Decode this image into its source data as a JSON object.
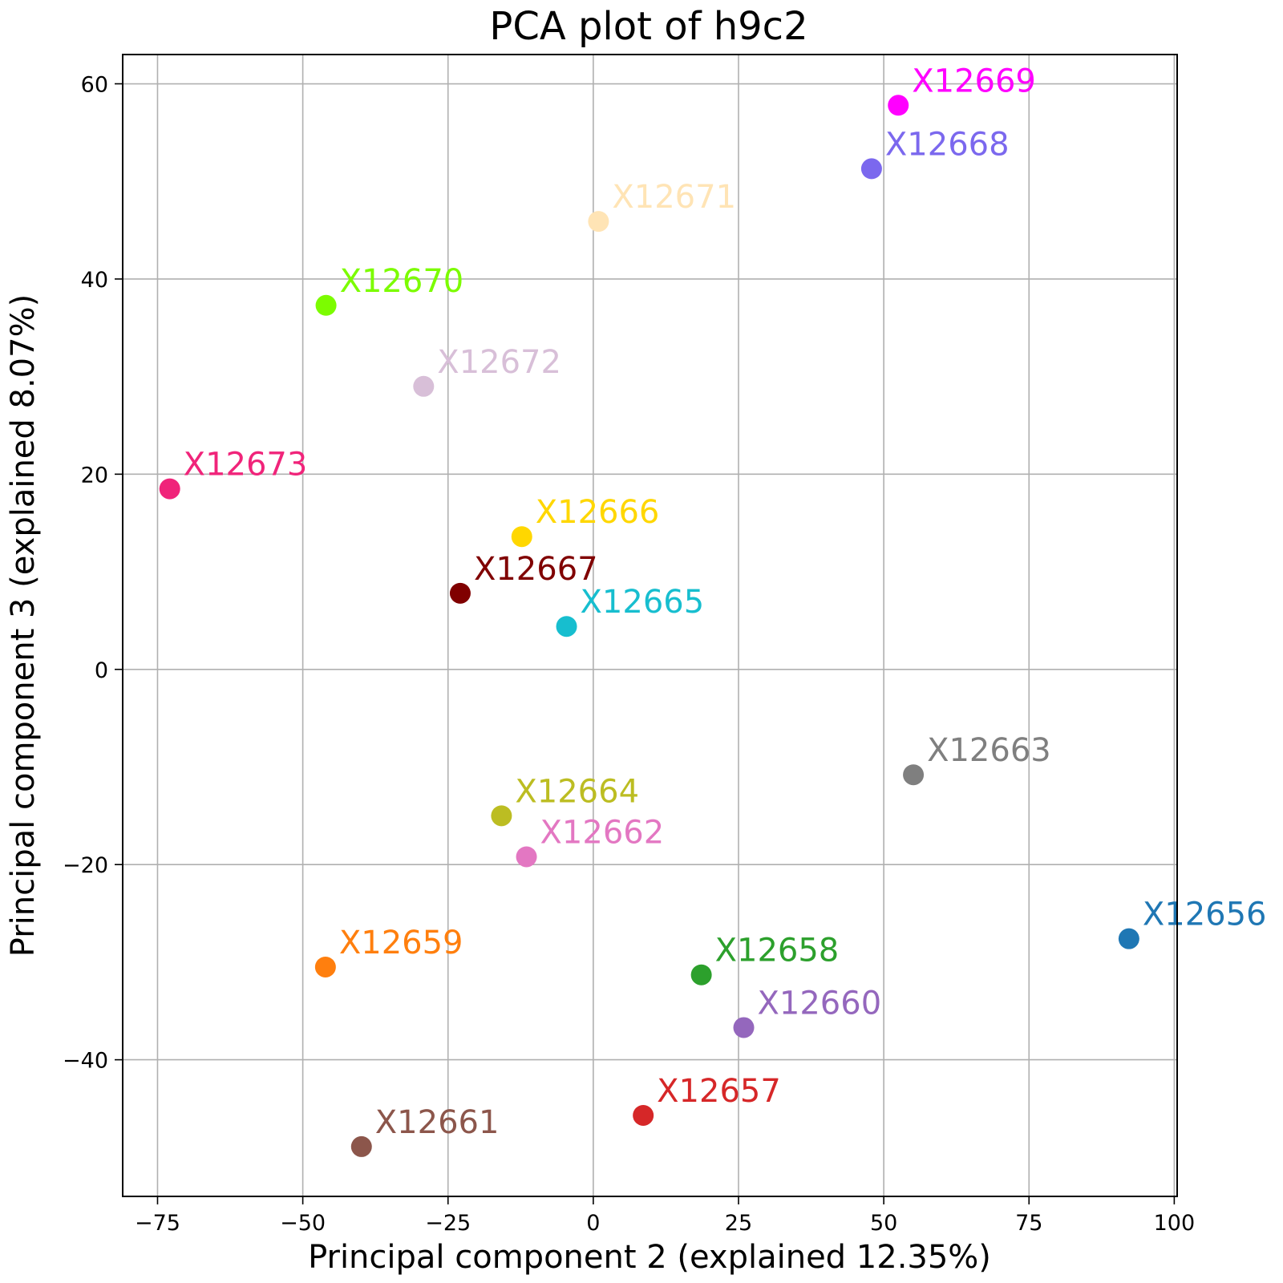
{
  "chart_data": {
    "type": "scatter",
    "title": "PCA plot of h9c2",
    "xlabel": "Principal component 2 (explained 12.35%)",
    "ylabel": "Principal component 3 (explained 8.07%)",
    "xlim": [
      -81,
      100.5
    ],
    "ylim": [
      -54,
      63
    ],
    "xticks": [
      -75,
      -50,
      -25,
      0,
      25,
      50,
      75,
      100
    ],
    "xtick_labels": [
      "−75",
      "−50",
      "−25",
      "0",
      "25",
      "50",
      "75",
      "100"
    ],
    "yticks": [
      -40,
      -20,
      0,
      20,
      40,
      60
    ],
    "ytick_labels": [
      "−40",
      "−20",
      "0",
      "20",
      "40",
      "60"
    ],
    "grid": true,
    "legend": "none",
    "points": [
      {
        "label": "X12656",
        "x": 92.2,
        "y": -27.6,
        "color": "#1f77b4"
      },
      {
        "label": "X12657",
        "x": 8.6,
        "y": -45.7,
        "color": "#d62728"
      },
      {
        "label": "X12658",
        "x": 18.6,
        "y": -31.3,
        "color": "#2ca02c"
      },
      {
        "label": "X12659",
        "x": -46.1,
        "y": -30.5,
        "color": "#ff7f0e"
      },
      {
        "label": "X12660",
        "x": 25.9,
        "y": -36.7,
        "color": "#9467bd"
      },
      {
        "label": "X12661",
        "x": -39.9,
        "y": -48.9,
        "color": "#8c564b"
      },
      {
        "label": "X12662",
        "x": -11.5,
        "y": -19.2,
        "color": "#e377c2"
      },
      {
        "label": "X12663",
        "x": 55.1,
        "y": -10.8,
        "color": "#7f7f7f"
      },
      {
        "label": "X12664",
        "x": -15.8,
        "y": -15.0,
        "color": "#bcbd22"
      },
      {
        "label": "X12665",
        "x": -4.6,
        "y": 4.4,
        "color": "#17becf"
      },
      {
        "label": "X12666",
        "x": -12.3,
        "y": 13.6,
        "color": "#ffd700"
      },
      {
        "label": "X12667",
        "x": -22.9,
        "y": 7.8,
        "color": "#800000"
      },
      {
        "label": "X12668",
        "x": 47.9,
        "y": 51.3,
        "color": "#7b68ee"
      },
      {
        "label": "X12669",
        "x": 52.5,
        "y": 57.8,
        "color": "#ff00ff"
      },
      {
        "label": "X12670",
        "x": -46.0,
        "y": 37.3,
        "color": "#7cfc00"
      },
      {
        "label": "X12671",
        "x": 0.9,
        "y": 45.9,
        "color": "#ffe4b5"
      },
      {
        "label": "X12672",
        "x": -29.2,
        "y": 29.0,
        "color": "#d8bfd8"
      },
      {
        "label": "X12673",
        "x": -72.9,
        "y": 18.5,
        "color": "#f0247a"
      }
    ]
  }
}
